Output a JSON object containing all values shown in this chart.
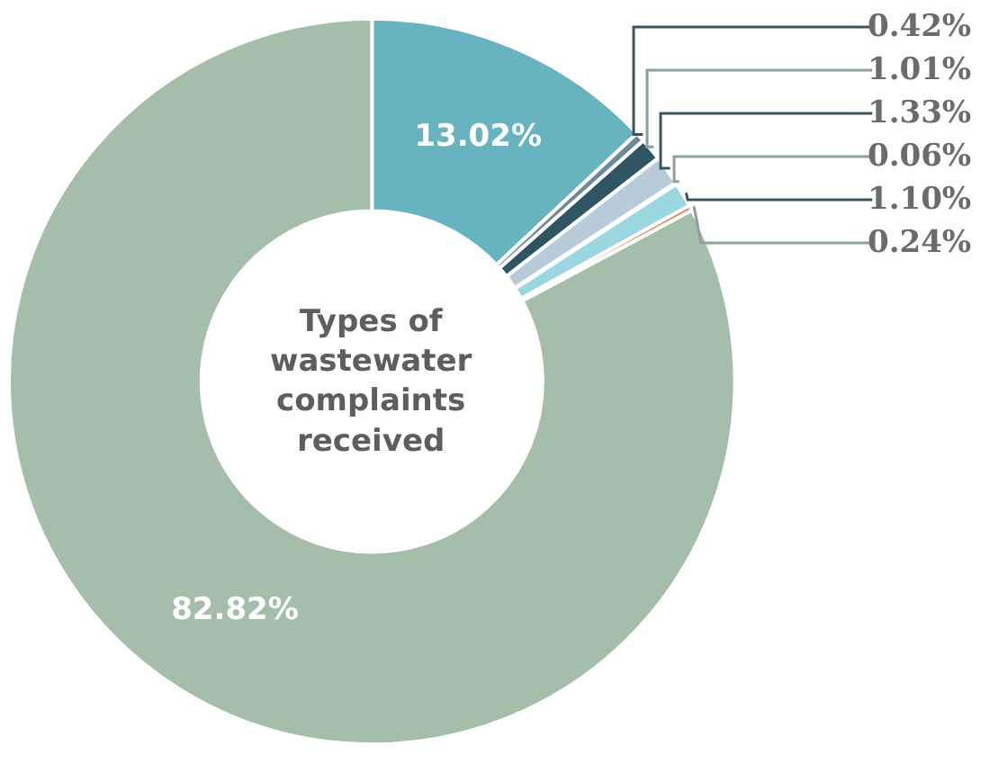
{
  "chart_data": {
    "type": "donut",
    "title": "Types of wastewater complaints received",
    "categories": [
      null,
      null,
      null,
      null,
      null,
      null,
      null,
      null
    ],
    "values": [
      13.02,
      0.42,
      1.01,
      1.33,
      0.06,
      1.1,
      0.24,
      82.82
    ],
    "value_labels": [
      "13.02%",
      "0.42%",
      "1.01%",
      "1.33%",
      "0.06%",
      "1.10%",
      "0.24%",
      "82.82%"
    ],
    "colors": [
      "#67b4c0",
      "#6e8a99",
      "#2f5563",
      "#b7cbd8",
      "#8aa83f",
      "#9ad7e0",
      "#e87a3a",
      "#a5bea9"
    ],
    "legend": false
  }
}
